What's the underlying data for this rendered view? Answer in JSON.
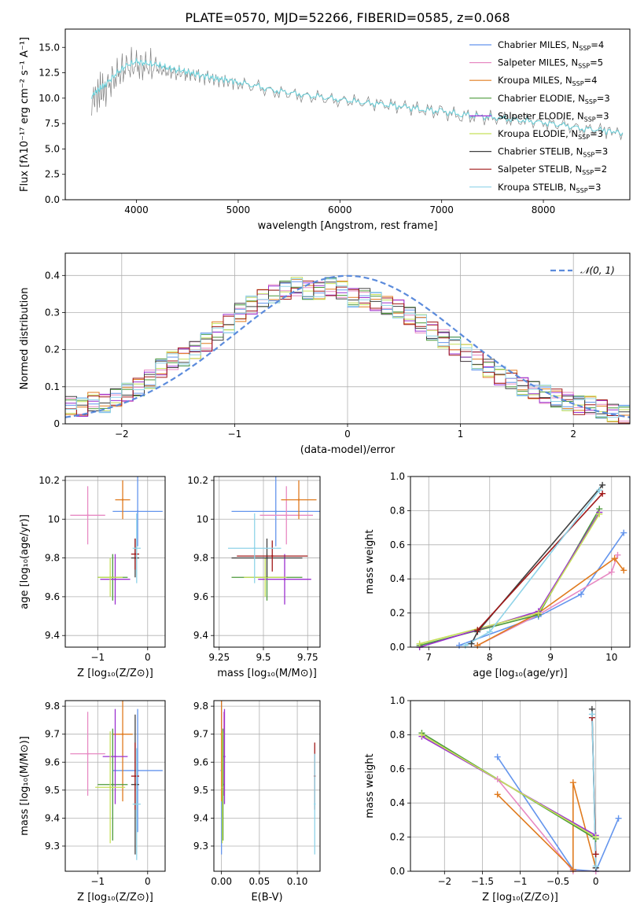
{
  "figure_title": "PLATE=0570, MJD=52266, FIBERID=0585, z=0.068",
  "legend_entries": [
    {
      "label": "Chabrier MILES, N",
      "sub": "SSP",
      "suffix": "=4",
      "color": "#6495ed"
    },
    {
      "label": "Salpeter MILES, N",
      "sub": "SSP",
      "suffix": "=5",
      "color": "#e78ac3"
    },
    {
      "label": "Kroupa MILES, N",
      "sub": "SSP",
      "suffix": "=4",
      "color": "#e07b1f"
    },
    {
      "label": "Chabrier ELODIE, N",
      "sub": "SSP",
      "suffix": "=3",
      "color": "#4c9a3a"
    },
    {
      "label": "Salpeter ELODIE, N",
      "sub": "SSP",
      "suffix": "=3",
      "color": "#9b30d0"
    },
    {
      "label": "Kroupa ELODIE, N",
      "sub": "SSP",
      "suffix": "=3",
      "color": "#c6e05a"
    },
    {
      "label": "Chabrier STELIB, N",
      "sub": "SSP",
      "suffix": "=3",
      "color": "#404040"
    },
    {
      "label": "Salpeter STELIB, N",
      "sub": "SSP",
      "suffix": "=2",
      "color": "#a01818"
    },
    {
      "label": "Kroupa STELIB, N",
      "sub": "SSP",
      "suffix": "=3",
      "color": "#8fd3e8"
    }
  ],
  "chart_data": [
    {
      "type": "line",
      "id": "spectrum",
      "xlabel": "wavelength [Angstrom, rest frame]",
      "ylabel": "Flux [fλ10⁻¹⁷ erg cm⁻² s⁻¹ A⁻¹]",
      "xlim": [
        3300,
        8850
      ],
      "ylim": [
        0,
        16.8
      ],
      "xticks": [
        4000,
        5000,
        6000,
        7000,
        8000
      ],
      "yticks": [
        0.0,
        2.5,
        5.0,
        7.5,
        10.0,
        12.5,
        15.0
      ],
      "series": [
        {
          "name": "data",
          "color": "#808080",
          "x": [
            3560,
            3620,
            3700,
            3800,
            3900,
            4000,
            4100,
            4200,
            4300,
            4400,
            4500,
            4600,
            4700,
            4800,
            4900,
            5000,
            5200,
            5400,
            5600,
            5800,
            6000,
            6200,
            6400,
            6600,
            6800,
            7000,
            7200,
            7400,
            7600,
            7800,
            8000,
            8200,
            8400,
            8600,
            8780
          ],
          "y": [
            9.8,
            10.5,
            11.0,
            12.2,
            13.0,
            13.2,
            13.1,
            12.9,
            12.6,
            12.5,
            12.4,
            12.2,
            12.0,
            11.8,
            11.7,
            11.5,
            11.0,
            10.6,
            10.3,
            10.0,
            9.8,
            9.6,
            9.4,
            9.2,
            8.9,
            8.6,
            8.3,
            8.1,
            8.0,
            7.8,
            7.6,
            7.3,
            7.0,
            6.8,
            6.6
          ]
        },
        {
          "name": "model",
          "color": "#6ad2dc",
          "x": [
            3560,
            3620,
            3700,
            3800,
            3900,
            4000,
            4100,
            4200,
            4300,
            4400,
            4500,
            4600,
            4700,
            4800,
            4900,
            5000,
            5200,
            5400,
            5600,
            5800,
            6000,
            6200,
            6400,
            6600,
            6800,
            7000,
            7200,
            7400,
            7600,
            7800,
            8000,
            8200,
            8400,
            8600,
            8780
          ],
          "y": [
            10.2,
            10.8,
            11.4,
            12.4,
            13.2,
            13.6,
            13.4,
            13.3,
            13.0,
            12.8,
            12.6,
            12.3,
            12.1,
            11.9,
            11.8,
            11.6,
            11.1,
            10.7,
            10.4,
            10.1,
            9.9,
            9.6,
            9.4,
            9.2,
            8.9,
            8.7,
            8.4,
            8.2,
            8.0,
            7.8,
            7.6,
            7.3,
            7.0,
            6.8,
            6.6
          ]
        }
      ]
    },
    {
      "type": "line",
      "id": "residuals",
      "xlabel": "(data-model)/error",
      "ylabel": "Normed distribution",
      "xlim": [
        -2.5,
        2.5
      ],
      "ylim": [
        0,
        0.46
      ],
      "xticks": [
        -2,
        -1,
        0,
        1,
        2
      ],
      "yticks": [
        0.0,
        0.1,
        0.2,
        0.3,
        0.4
      ],
      "legend": "𝒩(0, 1)",
      "gaussian_color": "#5b8bdc",
      "bin_edges": [
        -2.5,
        -2.4,
        -2.3,
        -2.2,
        -2.1,
        -2.0,
        -1.9,
        -1.8,
        -1.7,
        -1.6,
        -1.5,
        -1.4,
        -1.3,
        -1.2,
        -1.1,
        -1.0,
        -0.9,
        -0.8,
        -0.7,
        -0.6,
        -0.5,
        -0.4,
        -0.3,
        -0.2,
        -0.1,
        0.0,
        0.1,
        0.2,
        0.3,
        0.4,
        0.5,
        0.6,
        0.7,
        0.8,
        0.9,
        1.0,
        1.1,
        1.2,
        1.3,
        1.4,
        1.5,
        1.6,
        1.7,
        1.8,
        1.9,
        2.0,
        2.1,
        2.2,
        2.3,
        2.4,
        2.5
      ],
      "hist_base": [
        0.05,
        0.045,
        0.06,
        0.055,
        0.07,
        0.085,
        0.1,
        0.12,
        0.15,
        0.17,
        0.18,
        0.2,
        0.22,
        0.25,
        0.27,
        0.3,
        0.32,
        0.34,
        0.35,
        0.36,
        0.37,
        0.36,
        0.36,
        0.37,
        0.36,
        0.34,
        0.34,
        0.33,
        0.32,
        0.31,
        0.29,
        0.27,
        0.25,
        0.23,
        0.21,
        0.19,
        0.17,
        0.15,
        0.13,
        0.12,
        0.1,
        0.09,
        0.08,
        0.07,
        0.06,
        0.05,
        0.05,
        0.04,
        0.03,
        0.025
      ],
      "hist_colors": [
        "#6495ed",
        "#e78ac3",
        "#e07b1f",
        "#4c9a3a",
        "#9b30d0",
        "#c6e05a",
        "#404040",
        "#a01818",
        "#8fd3e8"
      ]
    },
    {
      "type": "scatter",
      "id": "age-vs-z",
      "xlabel": "Z [log₁₀(Z/Z⊙)]",
      "ylabel": "age  [log₁₀(age/yr)]",
      "xlim": [
        -1.65,
        0.35
      ],
      "ylim": [
        9.34,
        10.22
      ],
      "xticks": [
        -1,
        0
      ],
      "yticks": [
        9.4,
        9.6,
        9.8,
        10.0,
        10.2
      ],
      "points": [
        {
          "x": -0.2,
          "y": 10.04,
          "xerr": 0.5,
          "yerr": 0.18,
          "color": "#6495ed"
        },
        {
          "x": -1.2,
          "y": 10.02,
          "xerr": 0.35,
          "yerr": 0.15,
          "color": "#e78ac3"
        },
        {
          "x": -0.5,
          "y": 10.1,
          "xerr": 0.15,
          "yerr": 0.1,
          "color": "#e07b1f"
        },
        {
          "x": -0.7,
          "y": 9.7,
          "xerr": 0.3,
          "yerr": 0.12,
          "color": "#4c9a3a"
        },
        {
          "x": -0.65,
          "y": 9.69,
          "xerr": 0.3,
          "yerr": 0.13,
          "color": "#9b30d0"
        },
        {
          "x": -0.75,
          "y": 9.7,
          "xerr": 0.25,
          "yerr": 0.1,
          "color": "#c6e05a"
        },
        {
          "x": -0.25,
          "y": 9.8,
          "xerr": 0.08,
          "yerr": 0.1,
          "color": "#404040"
        },
        {
          "x": -0.25,
          "y": 9.82,
          "xerr": 0.08,
          "yerr": 0.08,
          "color": "#a01818"
        },
        {
          "x": -0.22,
          "y": 9.85,
          "xerr": 0.08,
          "yerr": 0.18,
          "color": "#8fd3e8"
        }
      ]
    },
    {
      "type": "scatter",
      "id": "age-vs-mass",
      "xlabel": "mass [log₁₀(M/M⊙)]",
      "ylabel": "",
      "xlim": [
        9.22,
        9.82
      ],
      "ylim": [
        9.34,
        10.22
      ],
      "xticks": [
        9.25,
        9.5,
        9.75
      ],
      "yticks": [
        9.4,
        9.6,
        9.8,
        10.0,
        10.2
      ],
      "points": [
        {
          "x": 9.57,
          "y": 10.04,
          "xerr": 0.25,
          "yerr": 0.18,
          "color": "#6495ed"
        },
        {
          "x": 9.63,
          "y": 10.02,
          "xerr": 0.15,
          "yerr": 0.15,
          "color": "#e78ac3"
        },
        {
          "x": 9.7,
          "y": 10.1,
          "xerr": 0.1,
          "yerr": 0.1,
          "color": "#e07b1f"
        },
        {
          "x": 9.52,
          "y": 9.7,
          "xerr": 0.2,
          "yerr": 0.12,
          "color": "#4c9a3a"
        },
        {
          "x": 9.62,
          "y": 9.69,
          "xerr": 0.15,
          "yerr": 0.13,
          "color": "#9b30d0"
        },
        {
          "x": 9.51,
          "y": 9.7,
          "xerr": 0.12,
          "yerr": 0.1,
          "color": "#c6e05a"
        },
        {
          "x": 9.52,
          "y": 9.8,
          "xerr": 0.2,
          "yerr": 0.1,
          "color": "#404040"
        },
        {
          "x": 9.55,
          "y": 9.81,
          "xerr": 0.2,
          "yerr": 0.08,
          "color": "#a01818"
        },
        {
          "x": 9.45,
          "y": 9.85,
          "xerr": 0.15,
          "yerr": 0.18,
          "color": "#8fd3e8"
        }
      ]
    },
    {
      "type": "line",
      "id": "mass-weight-vs-age",
      "xlabel": "age  [log₁₀(age/yr)]",
      "ylabel": "mass weight",
      "xlim": [
        6.7,
        10.3
      ],
      "ylim": [
        0,
        1.0
      ],
      "xticks": [
        7,
        8,
        9,
        10
      ],
      "yticks": [
        0.0,
        0.2,
        0.4,
        0.6,
        0.8,
        1.0
      ],
      "series": [
        {
          "color": "#6495ed",
          "x": [
            7.5,
            8.8,
            9.5,
            10.2
          ],
          "y": [
            0.01,
            0.18,
            0.31,
            0.67
          ]
        },
        {
          "color": "#e78ac3",
          "x": [
            7.8,
            8.8,
            10.0,
            10.1
          ],
          "y": [
            0.01,
            0.19,
            0.44,
            0.54
          ]
        },
        {
          "color": "#e07b1f",
          "x": [
            7.8,
            8.8,
            10.05,
            10.2
          ],
          "y": [
            0.01,
            0.2,
            0.52,
            0.45
          ]
        },
        {
          "color": "#4c9a3a",
          "x": [
            6.85,
            8.8,
            9.8
          ],
          "y": [
            0.01,
            0.19,
            0.81
          ]
        },
        {
          "color": "#9b30d0",
          "x": [
            6.85,
            8.8,
            9.8
          ],
          "y": [
            0.0,
            0.21,
            0.79
          ]
        },
        {
          "color": "#c6e05a",
          "x": [
            6.85,
            8.8,
            9.8
          ],
          "y": [
            0.02,
            0.2,
            0.78
          ]
        },
        {
          "color": "#404040",
          "x": [
            7.7,
            7.8,
            9.85
          ],
          "y": [
            0.02,
            0.09,
            0.95
          ]
        },
        {
          "color": "#a01818",
          "x": [
            7.8,
            9.85
          ],
          "y": [
            0.1,
            0.9
          ]
        },
        {
          "color": "#8fd3e8",
          "x": [
            7.6,
            8.0,
            9.8
          ],
          "y": [
            0.01,
            0.09,
            0.92
          ]
        }
      ]
    },
    {
      "type": "scatter",
      "id": "mass-vs-z",
      "xlabel": "Z [log₁₀(Z/Z⊙)]",
      "ylabel": "mass [log₁₀(M/M⊙)]",
      "xlim": [
        -1.65,
        0.35
      ],
      "ylim": [
        9.21,
        9.82
      ],
      "xticks": [
        -1,
        0
      ],
      "yticks": [
        9.3,
        9.4,
        9.5,
        9.6,
        9.7,
        9.8
      ],
      "points": [
        {
          "x": -0.2,
          "y": 9.57,
          "xerr": 0.5,
          "yerr": 0.22,
          "color": "#6495ed"
        },
        {
          "x": -1.2,
          "y": 9.63,
          "xerr": 0.35,
          "yerr": 0.15,
          "color": "#e78ac3"
        },
        {
          "x": -0.5,
          "y": 9.7,
          "xerr": 0.2,
          "yerr": 0.24,
          "color": "#e07b1f"
        },
        {
          "x": -0.7,
          "y": 9.52,
          "xerr": 0.3,
          "yerr": 0.2,
          "color": "#4c9a3a"
        },
        {
          "x": -0.65,
          "y": 9.62,
          "xerr": 0.25,
          "yerr": 0.17,
          "color": "#9b30d0"
        },
        {
          "x": -0.75,
          "y": 9.51,
          "xerr": 0.3,
          "yerr": 0.2,
          "color": "#c6e05a"
        },
        {
          "x": -0.25,
          "y": 9.52,
          "xerr": 0.08,
          "yerr": 0.25,
          "color": "#404040"
        },
        {
          "x": -0.25,
          "y": 9.55,
          "xerr": 0.08,
          "yerr": 0.12,
          "color": "#a01818"
        },
        {
          "x": -0.22,
          "y": 9.45,
          "xerr": 0.08,
          "yerr": 0.2,
          "color": "#8fd3e8"
        }
      ]
    },
    {
      "type": "scatter",
      "id": "mass-vs-ebv",
      "xlabel": "E(B-V)",
      "ylabel": "",
      "xlim": [
        -0.01,
        0.13
      ],
      "ylim": [
        9.21,
        9.82
      ],
      "xticks": [
        0.0,
        0.05,
        0.1
      ],
      "xtick_labels": [
        "0.00",
        "0.05",
        "0.10"
      ],
      "yticks": [
        9.3,
        9.4,
        9.5,
        9.6,
        9.7,
        9.8
      ],
      "points": [
        {
          "x": 0.0,
          "y": 9.57,
          "yerr": 0.3,
          "color": "#6495ed"
        },
        {
          "x": 0.003,
          "y": 9.63,
          "yerr": 0.15,
          "color": "#e78ac3"
        },
        {
          "x": 0.0,
          "y": 9.7,
          "yerr": 0.24,
          "color": "#e07b1f"
        },
        {
          "x": 0.002,
          "y": 9.52,
          "yerr": 0.2,
          "color": "#4c9a3a"
        },
        {
          "x": 0.004,
          "y": 9.62,
          "yerr": 0.17,
          "color": "#9b30d0"
        },
        {
          "x": 0.001,
          "y": 9.51,
          "yerr": 0.2,
          "color": "#c6e05a"
        },
        {
          "x": 0.123,
          "y": 9.55,
          "yerr": 0.12,
          "color": "#a01818"
        },
        {
          "x": 0.123,
          "y": 9.45,
          "yerr": 0.18,
          "color": "#8fd3e8"
        }
      ]
    },
    {
      "type": "line",
      "id": "mass-weight-vs-z",
      "xlabel": "Z [log₁₀(Z/Z⊙)]",
      "ylabel": "mass weight",
      "xlim": [
        -2.45,
        0.45
      ],
      "ylim": [
        0,
        1.0
      ],
      "xticks": [
        -2.0,
        -1.5,
        -1.0,
        -0.5,
        0.0
      ],
      "yticks": [
        0.0,
        0.2,
        0.4,
        0.6,
        0.8,
        1.0
      ],
      "series": [
        {
          "color": "#6495ed",
          "x": [
            -1.3,
            -0.3,
            0.0,
            0.3
          ],
          "y": [
            0.67,
            0.01,
            0.0,
            0.31
          ]
        },
        {
          "color": "#e78ac3",
          "x": [
            -1.3,
            -0.3,
            0.0
          ],
          "y": [
            0.54,
            0.0,
            0.0
          ]
        },
        {
          "color": "#e07b1f",
          "x": [
            -1.3,
            -0.3,
            -0.3,
            0.0
          ],
          "y": [
            0.45,
            0.01,
            0.52,
            0.02
          ]
        },
        {
          "color": "#4c9a3a",
          "x": [
            -2.3,
            0.0
          ],
          "y": [
            0.81,
            0.19
          ]
        },
        {
          "color": "#9b30d0",
          "x": [
            -2.3,
            0.0
          ],
          "y": [
            0.79,
            0.21
          ]
        },
        {
          "color": "#c6e05a",
          "x": [
            -2.3,
            0.0
          ],
          "y": [
            0.8,
            0.2
          ]
        },
        {
          "color": "#404040",
          "x": [
            -0.05,
            0.0
          ],
          "y": [
            0.95,
            0.02
          ]
        },
        {
          "color": "#a01818",
          "x": [
            -0.05,
            0.0
          ],
          "y": [
            0.9,
            0.1
          ]
        },
        {
          "color": "#8fd3e8",
          "x": [
            -0.05,
            0.0
          ],
          "y": [
            0.92,
            0.03
          ]
        }
      ]
    }
  ]
}
